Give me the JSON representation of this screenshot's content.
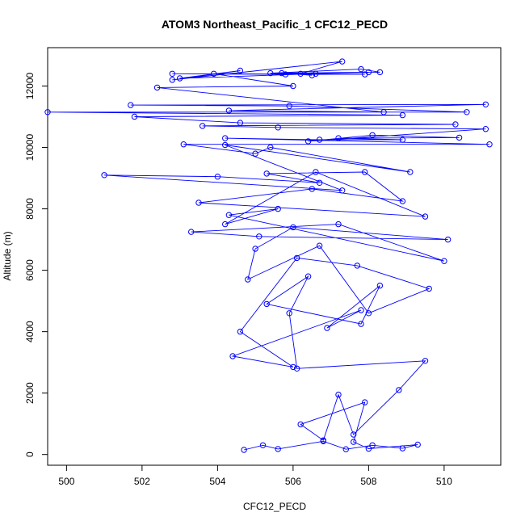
{
  "chart_data": {
    "type": "line",
    "title": "ATOM3 Northeast_Pacific_1 CFC12_PECD",
    "xlabel": "CFC12_PECD",
    "ylabel": "Altitude (m)",
    "xlim": [
      499.5,
      511.5
    ],
    "ylim": [
      -350,
      13250
    ],
    "xticks": [
      500,
      502,
      504,
      506,
      508,
      510
    ],
    "yticks": [
      0,
      2000,
      4000,
      6000,
      8000,
      10000,
      12000
    ],
    "grid": false,
    "legend": "none",
    "color": "#0000ff",
    "marker": "open-circle",
    "series": [
      {
        "x": [
          504.7,
          505.2,
          505.6,
          506.8,
          507.4,
          508.1,
          508.9,
          509.3,
          508.0,
          507.6,
          507.9,
          506.2,
          506.8,
          507.2,
          507.6,
          508.8,
          509.5,
          506.1,
          505.9,
          506.4,
          505.3,
          507.8,
          508.3,
          506.9,
          507.8,
          504.4,
          506.0,
          504.6,
          506.1,
          507.7,
          509.6,
          508.0,
          506.7,
          504.8,
          505.0,
          506.0,
          510.1,
          505.1,
          503.3,
          507.2,
          510.0,
          504.3,
          505.6,
          504.2,
          506.6,
          509.5,
          503.5,
          506.5,
          508.9,
          507.9,
          505.3,
          506.7,
          504.0,
          501.0,
          507.3,
          504.2,
          509.1,
          505.4,
          505.0,
          503.1,
          511.2,
          504.2,
          506.7,
          508.9,
          507.2,
          510.4,
          508.1,
          506.4,
          511.1,
          505.6,
          503.6,
          510.3,
          504.6,
          501.8,
          508.9,
          499.5,
          510.6,
          505.9,
          501.7,
          511.1,
          504.3,
          508.4,
          502.4,
          506.0,
          503.9,
          507.9,
          502.8,
          505.8,
          508.3,
          507.8,
          505.4,
          506.6,
          503.0,
          504.6,
          502.8,
          507.3,
          506.2,
          506.5,
          505.7,
          508.0
        ],
        "y": [
          150,
          300,
          180,
          430,
          170,
          300,
          200,
          320,
          190,
          410,
          1700,
          980,
          460,
          1950,
          650,
          2100,
          3050,
          2800,
          4600,
          5800,
          4900,
          4250,
          5500,
          4120,
          4700,
          3200,
          2850,
          4000,
          6400,
          6150,
          5400,
          4600,
          6800,
          5700,
          6700,
          7400,
          7000,
          7100,
          7250,
          7500,
          6300,
          7800,
          8000,
          7500,
          9200,
          7750,
          8200,
          8650,
          8250,
          9200,
          9150,
          8850,
          9050,
          9100,
          8600,
          10080,
          9200,
          10000,
          9800,
          10100,
          10100,
          10300,
          10250,
          10250,
          10300,
          10320,
          10400,
          10200,
          10600,
          10650,
          10700,
          10750,
          10800,
          11000,
          11050,
          11150,
          11150,
          11350,
          11380,
          11400,
          11200,
          11150,
          11950,
          12000,
          12400,
          12380,
          12400,
          12380,
          12450,
          12550,
          12420,
          12400,
          12250,
          12500,
          12200,
          12800,
          12400,
          12350,
          12420,
          12450
        ]
      }
    ]
  }
}
